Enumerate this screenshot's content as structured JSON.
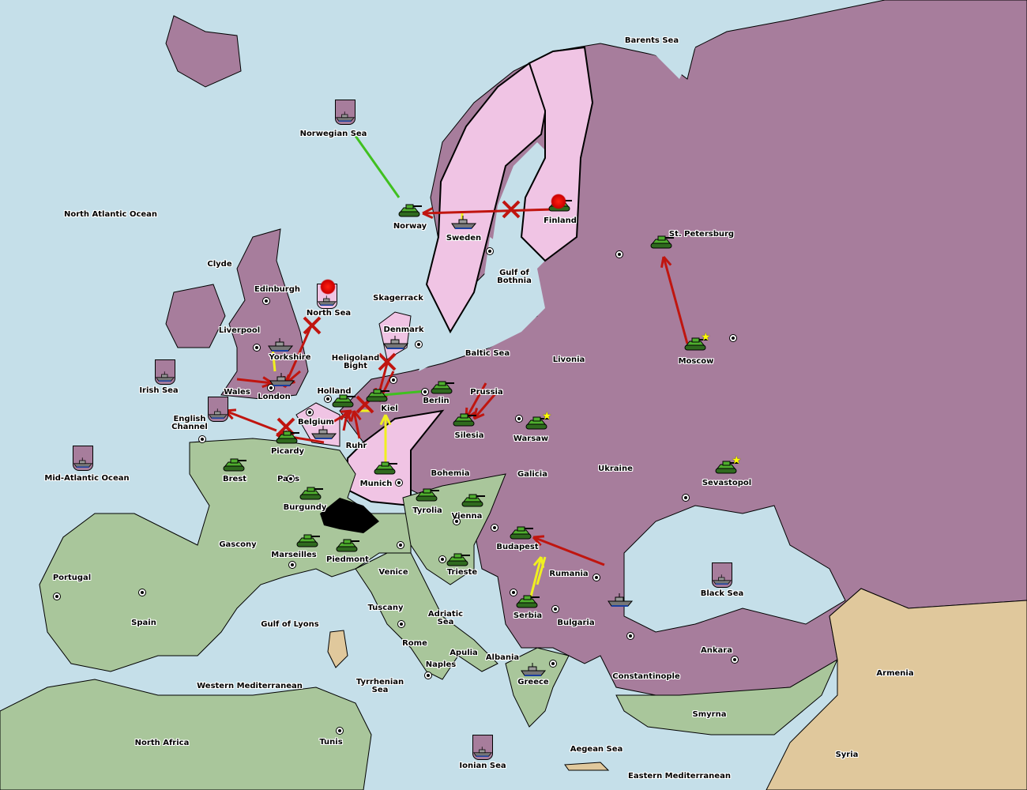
{
  "colors": {
    "sea": "#c5dfe9",
    "russia_turkey": "#a77d9c",
    "scandinavia_germany": "#f0c4e4",
    "france_austria_italy": "#a9c69b",
    "neutral": "#e0c89c",
    "impassable": "#000000",
    "order_move": "#c0150f",
    "order_support": "#f0f020",
    "order_convoy": "#40c020"
  },
  "labels": [
    "Barents Sea",
    "Norwegian Sea",
    "North Atlantic Ocean",
    "Norway",
    "Sweden",
    "Finland",
    "St. Petersburg",
    "Gulf of\nBothnia",
    "Clyde",
    "Edinburgh",
    "North Sea",
    "Skagerrack",
    "Denmark",
    "Liverpool",
    "Baltic Sea",
    "Livonia",
    "Moscow",
    "Heligoland\nBight",
    "Yorkshire",
    "Irish Sea",
    "Wales",
    "London",
    "Holland",
    "Berlin",
    "Prussia",
    "Kiel",
    "English\nChannel",
    "Belgium",
    "Silesia",
    "Warsaw",
    "Picardy",
    "Ruhr",
    "Ukraine",
    "Mid-Atlantic Ocean",
    "Brest",
    "Paris",
    "Munich",
    "Bohemia",
    "Galicia",
    "Sevastopol",
    "Burgundy",
    "Tyrolia",
    "Vienna",
    "Gascony",
    "Budapest",
    "Marseilles",
    "Piedmont",
    "Venice",
    "Trieste",
    "Rumania",
    "Portugal",
    "Black Sea",
    "Tuscany",
    "Adriatic\nSea",
    "Serbia",
    "Bulgaria",
    "Spain",
    "Gulf of Lyons",
    "Rome",
    "Apulia",
    "Ankara",
    "Albania",
    "Naples",
    "Constantinople",
    "Armenia",
    "Western Mediterranean",
    "Tyrrhenian\nSea",
    "Greece",
    "Smyrna",
    "North Africa",
    "Tunis",
    "Aegean Sea",
    "Syria",
    "Ionian Sea",
    "Eastern Mediterranean"
  ],
  "units": [
    {
      "type": "army",
      "location": "Norway",
      "color": "green"
    },
    {
      "type": "fleet",
      "location": "Sweden",
      "color": "grey"
    },
    {
      "type": "army",
      "location": "St. Petersburg",
      "color": "green"
    },
    {
      "type": "army",
      "location": "Moscow",
      "color": "green",
      "star": true
    },
    {
      "type": "fleet",
      "location": "Denmark",
      "color": "grey"
    },
    {
      "type": "fleet",
      "location": "Yorkshire",
      "color": "grey"
    },
    {
      "type": "fleet",
      "location": "London",
      "color": "grey"
    },
    {
      "type": "army",
      "location": "Holland",
      "color": "green"
    },
    {
      "type": "army",
      "location": "Kiel",
      "color": "green"
    },
    {
      "type": "army",
      "location": "Berlin",
      "color": "green"
    },
    {
      "type": "army",
      "location": "Silesia",
      "color": "green"
    },
    {
      "type": "army",
      "location": "Warsaw",
      "color": "green",
      "star": true
    },
    {
      "type": "fleet",
      "location": "Belgium",
      "color": "grey"
    },
    {
      "type": "army",
      "location": "Picardy",
      "color": "green"
    },
    {
      "type": "army",
      "location": "Brest",
      "color": "green"
    },
    {
      "type": "army",
      "location": "Munich",
      "color": "green"
    },
    {
      "type": "army",
      "location": "Sevastopol",
      "color": "green",
      "star": true
    },
    {
      "type": "army",
      "location": "Burgundy",
      "color": "green"
    },
    {
      "type": "army",
      "location": "Tyrolia",
      "color": "green"
    },
    {
      "type": "army",
      "location": "Vienna",
      "color": "green"
    },
    {
      "type": "army",
      "location": "Budapest",
      "color": "green"
    },
    {
      "type": "army",
      "location": "Marseilles",
      "color": "green"
    },
    {
      "type": "army",
      "location": "Piedmont",
      "color": "green"
    },
    {
      "type": "army",
      "location": "Trieste",
      "color": "green"
    },
    {
      "type": "army",
      "location": "Serbia",
      "color": "green"
    },
    {
      "type": "fleet",
      "location": "Rumania",
      "color": "grey"
    },
    {
      "type": "fleet",
      "location": "Greece",
      "color": "grey"
    },
    {
      "type": "fleet",
      "location": "Norwegian Sea",
      "color": "grey"
    },
    {
      "type": "fleet",
      "location": "Irish Sea",
      "color": "grey"
    },
    {
      "type": "fleet",
      "location": "English Channel",
      "color": "grey"
    },
    {
      "type": "fleet",
      "location": "Mid-Atlantic Ocean",
      "color": "grey"
    },
    {
      "type": "fleet",
      "location": "North Sea",
      "color": "grey",
      "dislodged": true
    },
    {
      "type": "fleet",
      "location": "Black Sea",
      "color": "grey"
    },
    {
      "type": "fleet",
      "location": "Ionian Sea",
      "color": "grey"
    },
    {
      "type": "army",
      "location": "Finland",
      "color": "green",
      "dislodged": true
    }
  ]
}
